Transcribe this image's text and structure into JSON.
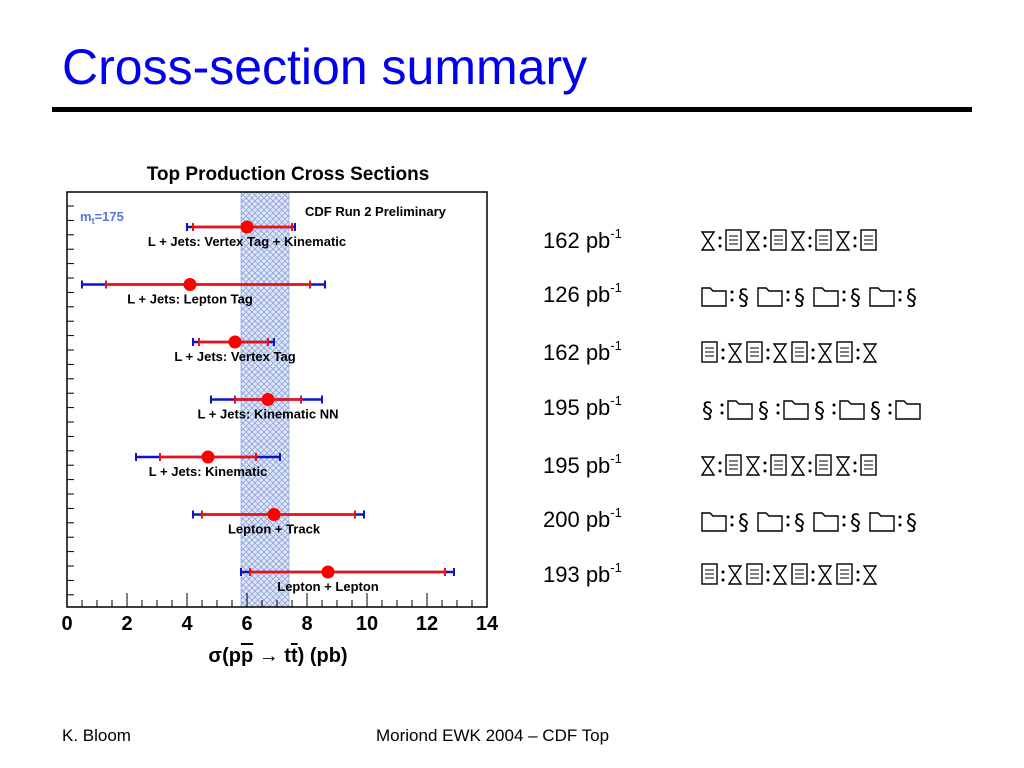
{
  "slide": {
    "title": "Cross-section summary",
    "footer_left": "K. Bloom",
    "footer_center": "Moriond EWK 2004 – CDF Top"
  },
  "chart_data": {
    "type": "scatter",
    "title": "Top Production Cross Sections",
    "subtitle": "CDF Run 2 Preliminary",
    "mass_label": "m",
    "mass_sub": "t",
    "mass_value": "=175",
    "xlabel": "σ(pp̅ → tt̅) (pb)",
    "xlim": [
      0,
      14
    ],
    "xticks": [
      "0",
      "2",
      "4",
      "6",
      "8",
      "10",
      "12",
      "14"
    ],
    "theory_band": [
      5.8,
      7.4
    ],
    "measurements": [
      {
        "label": "L + Jets: Vertex Tag + Kinematic",
        "value": 6.0,
        "stat": [
          4.2,
          7.5
        ],
        "total": [
          4.0,
          7.6
        ]
      },
      {
        "label": "L + Jets: Lepton Tag",
        "value": 4.1,
        "stat": [
          1.3,
          8.1
        ],
        "total": [
          0.5,
          8.6
        ]
      },
      {
        "label": "L + Jets: Vertex Tag",
        "value": 5.6,
        "stat": [
          4.4,
          6.7
        ],
        "total": [
          4.2,
          6.9
        ]
      },
      {
        "label": "L + Jets: Kinematic NN",
        "value": 6.7,
        "stat": [
          5.6,
          7.8
        ],
        "total": [
          4.8,
          8.5
        ]
      },
      {
        "label": "L + Jets: Kinematic",
        "value": 4.7,
        "stat": [
          3.1,
          6.3
        ],
        "total": [
          2.3,
          7.1
        ]
      },
      {
        "label": "Lepton + Track",
        "value": 6.9,
        "stat": [
          4.5,
          9.6
        ],
        "total": [
          4.2,
          9.9
        ]
      },
      {
        "label": "Lepton + Lepton",
        "value": 8.7,
        "stat": [
          6.1,
          12.6
        ],
        "total": [
          5.8,
          12.9
        ]
      }
    ]
  },
  "luminosities": [
    {
      "value": "162 pb",
      "exp": "-1"
    },
    {
      "value": "126 pb",
      "exp": "-1"
    },
    {
      "value": "162 pb",
      "exp": "-1"
    },
    {
      "value": "195 pb",
      "exp": "-1"
    },
    {
      "value": "195 pb",
      "exp": "-1"
    },
    {
      "value": "200 pb",
      "exp": "-1"
    },
    {
      "value": "193 pb",
      "exp": "-1"
    }
  ],
  "colors": {
    "title": "#0000ee",
    "stat_error": "#ee1111",
    "total_error": "#1111cc",
    "marker": "#ff0000",
    "band": "#a9b8e8"
  }
}
